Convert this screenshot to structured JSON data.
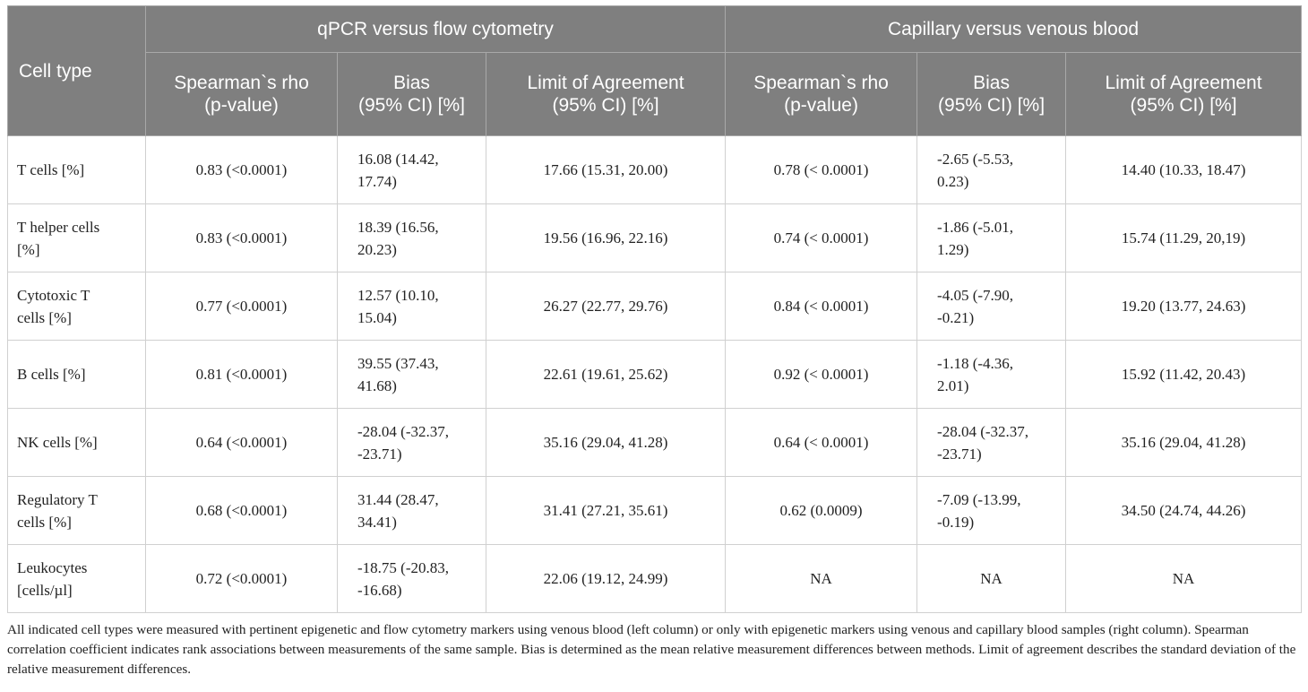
{
  "table": {
    "cell_type_header": "Cell type",
    "groups": [
      "qPCR versus flow cytometry",
      "Capillary versus venous blood"
    ],
    "subheaders": [
      [
        "Spearman`s rho",
        "(p-value)"
      ],
      [
        "Bias",
        "(95% CI) [%]"
      ],
      [
        "Limit of Agreement",
        "(95% CI) [%]"
      ],
      [
        "Spearman`s rho",
        "(p-value)"
      ],
      [
        "Bias",
        "(95% CI) [%]"
      ],
      [
        "Limit of Agreement",
        "(95% CI) [%]"
      ]
    ],
    "rows": [
      {
        "label": [
          "T cells [%]"
        ],
        "qpcr_rho": "0.83 (<0.0001)",
        "qpcr_bias": [
          "16.08 (14.42,",
          "17.74)"
        ],
        "qpcr_loa": "17.66 (15.31, 20.00)",
        "cap_rho": "0.78 (< 0.0001)",
        "cap_bias": [
          "-2.65 (-5.53,",
          "0.23)"
        ],
        "cap_loa": "14.40 (10.33, 18.47)"
      },
      {
        "label": [
          "T helper cells",
          "[%]"
        ],
        "qpcr_rho": "0.83 (<0.0001)",
        "qpcr_bias": [
          "18.39 (16.56,",
          "20.23)"
        ],
        "qpcr_loa": "19.56 (16.96, 22.16)",
        "cap_rho": "0.74 (< 0.0001)",
        "cap_bias": [
          "-1.86 (-5.01,",
          "1.29)"
        ],
        "cap_loa": "15.74 (11.29, 20,19)"
      },
      {
        "label": [
          "Cytotoxic T",
          "cells [%]"
        ],
        "qpcr_rho": "0.77 (<0.0001)",
        "qpcr_bias": [
          "12.57 (10.10,",
          "15.04)"
        ],
        "qpcr_loa": "26.27 (22.77, 29.76)",
        "cap_rho": "0.84 (< 0.0001)",
        "cap_bias": [
          "-4.05 (-7.90,",
          "-0.21)"
        ],
        "cap_loa": "19.20 (13.77, 24.63)"
      },
      {
        "label": [
          "B cells [%]"
        ],
        "qpcr_rho": "0.81 (<0.0001)",
        "qpcr_bias": [
          "39.55 (37.43,",
          "41.68)"
        ],
        "qpcr_loa": "22.61 (19.61, 25.62)",
        "cap_rho": "0.92 (< 0.0001)",
        "cap_bias": [
          "-1.18 (-4.36,",
          "2.01)"
        ],
        "cap_loa": "15.92 (11.42, 20.43)"
      },
      {
        "label": [
          "NK cells [%]"
        ],
        "qpcr_rho": "0.64 (<0.0001)",
        "qpcr_bias": [
          "-28.04 (-32.37,",
          "-23.71)"
        ],
        "qpcr_loa": "35.16 (29.04, 41.28)",
        "cap_rho": "0.64 (< 0.0001)",
        "cap_bias": [
          "-28.04 (-32.37,",
          "-23.71)"
        ],
        "cap_loa": "35.16 (29.04, 41.28)"
      },
      {
        "label": [
          "Regulatory T",
          "cells [%]"
        ],
        "qpcr_rho": "0.68 (<0.0001)",
        "qpcr_bias": [
          "31.44 (28.47,",
          "34.41)"
        ],
        "qpcr_loa": "31.41 (27.21, 35.61)",
        "cap_rho": "0.62 (0.0009)",
        "cap_bias": [
          "-7.09 (-13.99,",
          "-0.19)"
        ],
        "cap_loa": "34.50 (24.74, 44.26)"
      },
      {
        "label": [
          "Leukocytes",
          "[cells/µl]"
        ],
        "qpcr_rho": "0.72 (<0.0001)",
        "qpcr_bias": [
          "-18.75 (-20.83,",
          "-16.68)"
        ],
        "qpcr_loa": "22.06 (19.12, 24.99)",
        "cap_rho": "NA",
        "cap_bias": [
          "NA"
        ],
        "cap_loa": "NA"
      }
    ]
  },
  "footnote": "All indicated cell types were measured with pertinent epigenetic and flow cytometry markers using venous blood (left column) or only with epigenetic markers using venous and capillary blood samples (right column). Spearman correlation coefficient indicates rank associations between measurements of the same sample. Bias is determined as the mean relative measurement differences between methods. Limit of agreement describes the standard deviation of the relative measurement differences."
}
